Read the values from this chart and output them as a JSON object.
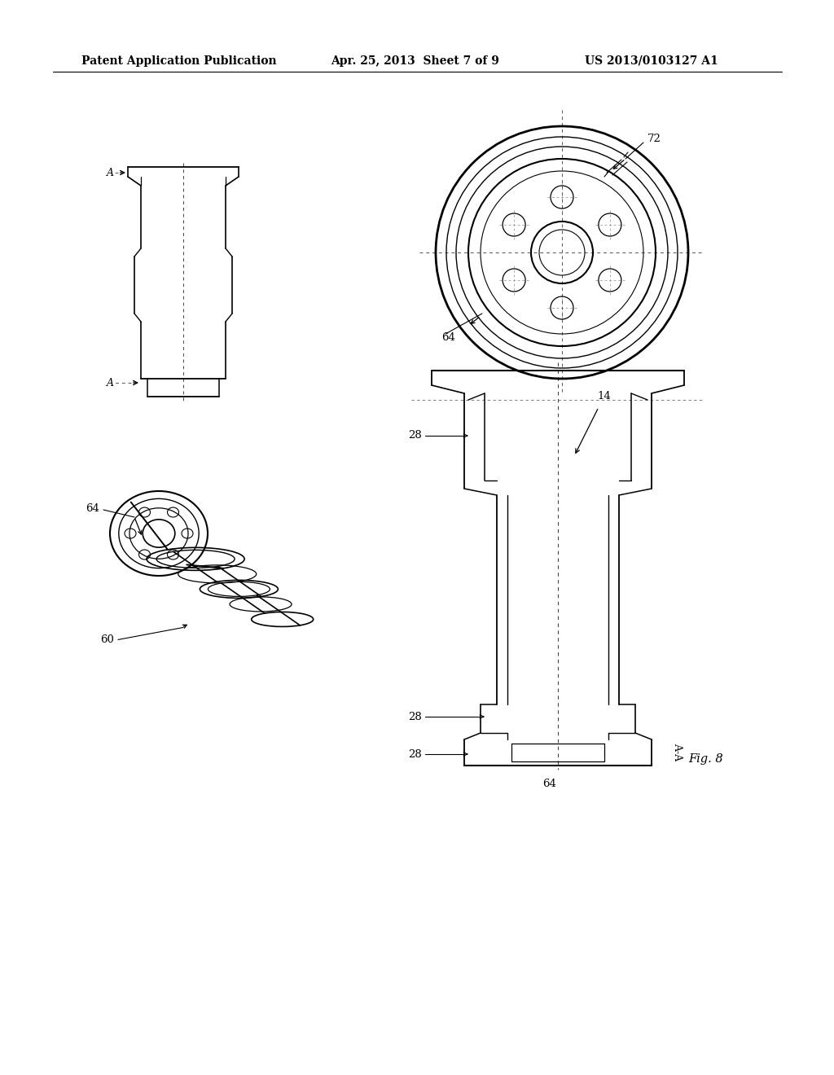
{
  "bg_color": "#ffffff",
  "header_left": "Patent Application Publication",
  "header_mid": "Apr. 25, 2013  Sheet 7 of 9",
  "header_right": "US 2013/0103127 A1",
  "header_fontsize": 11
}
